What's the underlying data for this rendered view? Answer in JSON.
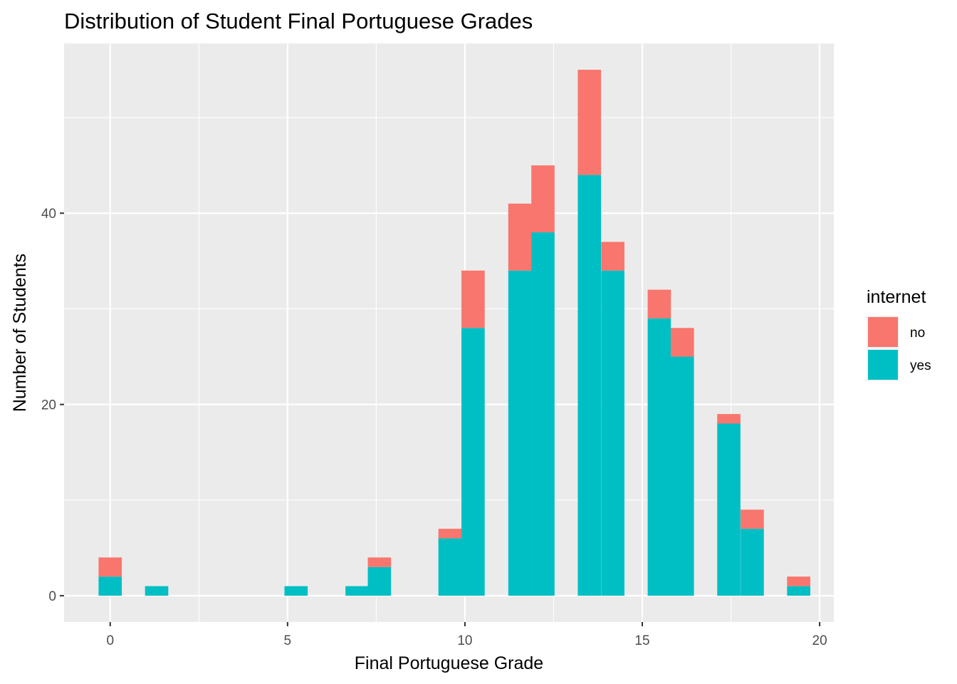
{
  "chart_data": {
    "type": "bar",
    "stacked": true,
    "title": "Distribution of Student Final Portuguese Grades",
    "xlabel": "Final Portuguese Grade",
    "ylabel": "Number of Students",
    "xlim": [
      -1.3,
      20.4
    ],
    "ylim": [
      -2.75,
      57.75
    ],
    "x_ticks": [
      0,
      5,
      10,
      15,
      20
    ],
    "y_ticks": [
      0,
      20,
      40
    ],
    "bin_width": 0.655,
    "x": [
      0,
      1.31,
      5.24,
      6.96,
      7.59,
      9.58,
      10.23,
      11.55,
      12.2,
      13.51,
      14.17,
      15.48,
      16.13,
      17.44,
      18.1,
      19.41
    ],
    "series": [
      {
        "name": "yes",
        "color": "#00BFC4",
        "values": [
          2,
          1,
          1,
          1,
          3,
          6,
          28,
          34,
          38,
          44,
          34,
          29,
          25,
          18,
          7,
          1
        ]
      },
      {
        "name": "no",
        "color": "#F8766D",
        "values": [
          2,
          0,
          0,
          0,
          1,
          1,
          6,
          7,
          7,
          11,
          3,
          3,
          3,
          1,
          2,
          1
        ]
      }
    ],
    "legend": {
      "title": "internet",
      "order": [
        "no",
        "yes"
      ],
      "position": "right"
    },
    "grid": true,
    "panel_background": "#EBEBEB",
    "grid_color": "#FFFFFF"
  }
}
